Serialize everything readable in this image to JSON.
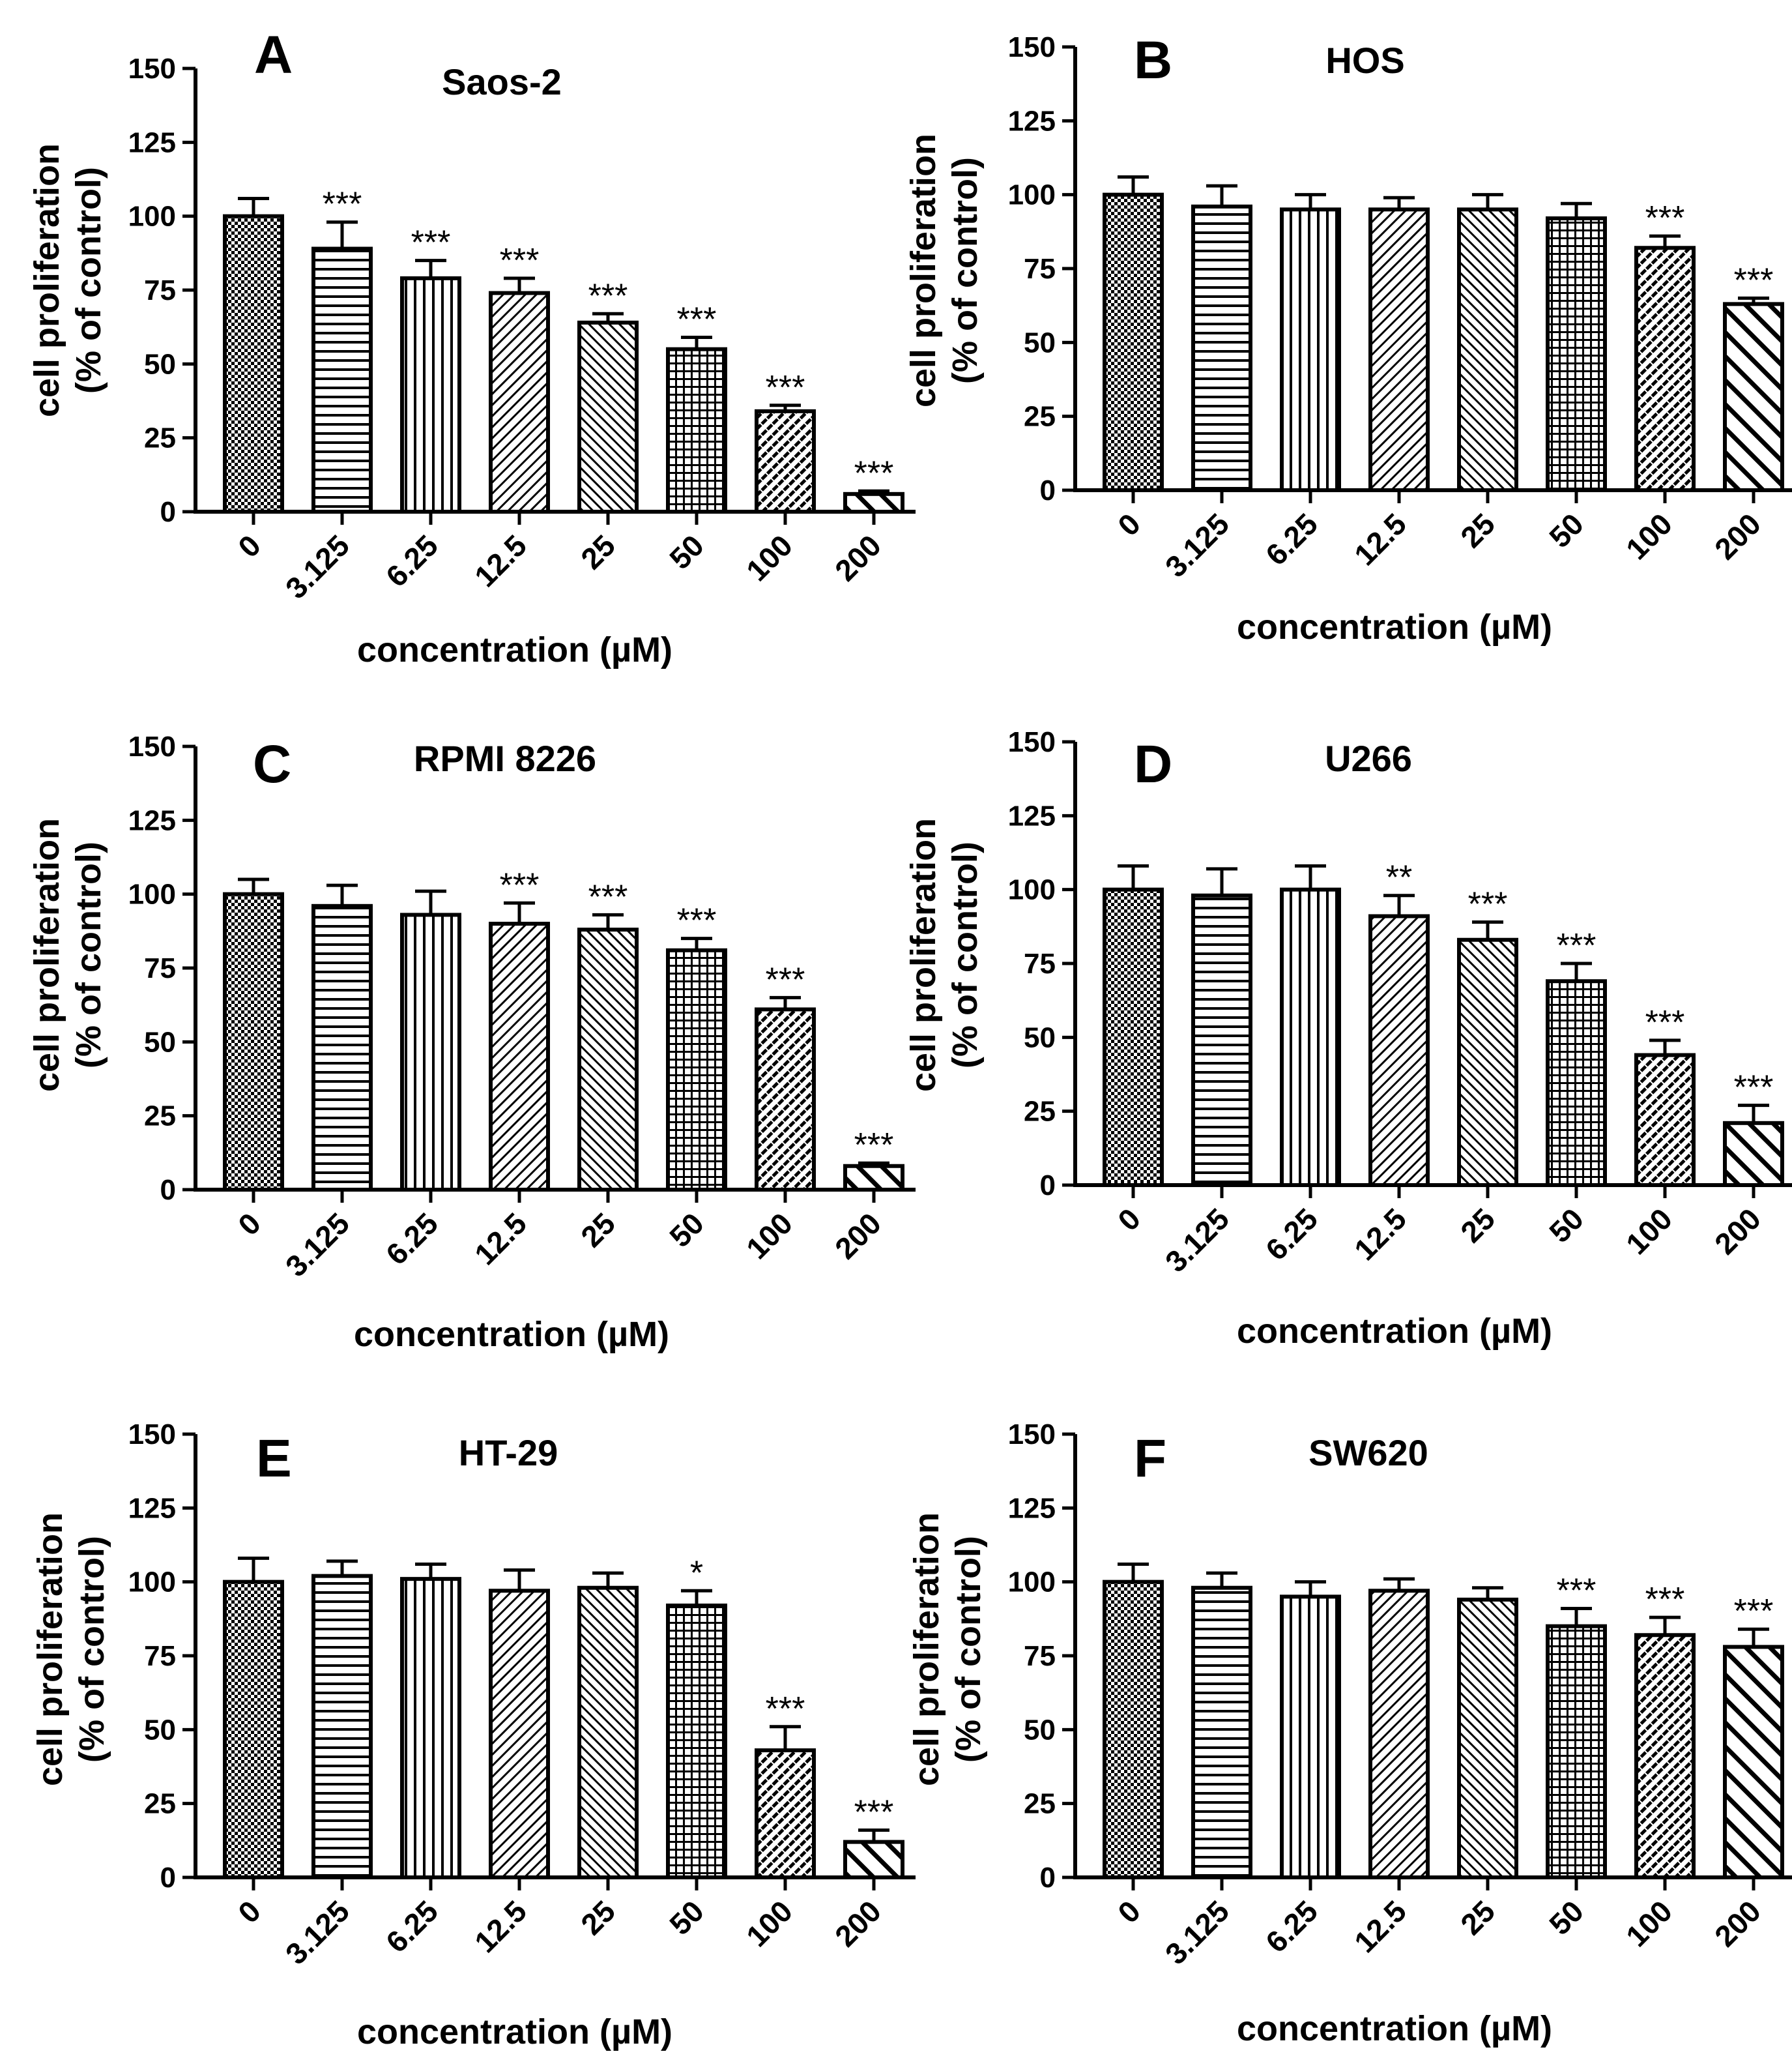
{
  "figure_name": "cell-proliferation-panels",
  "chart_data": [
    {
      "type": "bar",
      "letter": "A",
      "title": "Saos-2",
      "xlabel": "concentration (µM)",
      "ylabel_line1": "cell proliferation",
      "ylabel_line2": "(% of control)",
      "ylim": [
        0,
        150
      ],
      "yticks": [
        "0",
        "25",
        "50",
        "75",
        "100",
        "125",
        "150"
      ],
      "categories": [
        "0",
        "3.125",
        "6.25",
        "12.5",
        "25",
        "50",
        "100",
        "200"
      ],
      "values": [
        100,
        89,
        79,
        74,
        64,
        55,
        34,
        6
      ],
      "errors": [
        6,
        9,
        6,
        5,
        3,
        4,
        2,
        1
      ],
      "significance": [
        "",
        "***",
        "***",
        "***",
        "***",
        "***",
        "***",
        "***"
      ]
    },
    {
      "type": "bar",
      "letter": "B",
      "title": "HOS",
      "xlabel": "concentration (µM)",
      "ylabel_line1": "cell proliferation",
      "ylabel_line2": "(% of control)",
      "ylim": [
        0,
        150
      ],
      "yticks": [
        "0",
        "25",
        "50",
        "75",
        "100",
        "125",
        "150"
      ],
      "categories": [
        "0",
        "3.125",
        "6.25",
        "12.5",
        "25",
        "50",
        "100",
        "200"
      ],
      "values": [
        100,
        96,
        95,
        95,
        95,
        92,
        82,
        63
      ],
      "errors": [
        6,
        7,
        5,
        4,
        5,
        5,
        4,
        2
      ],
      "significance": [
        "",
        "",
        "",
        "",
        "",
        "",
        "***",
        "***"
      ]
    },
    {
      "type": "bar",
      "letter": "C",
      "title": "RPMI 8226",
      "xlabel": "concentration (µM)",
      "ylabel_line1": "cell proliferation",
      "ylabel_line2": "(% of control)",
      "ylim": [
        0,
        150
      ],
      "yticks": [
        "0",
        "25",
        "50",
        "75",
        "100",
        "125",
        "150"
      ],
      "categories": [
        "0",
        "3.125",
        "6.25",
        "12.5",
        "25",
        "50",
        "100",
        "200"
      ],
      "values": [
        100,
        96,
        93,
        90,
        88,
        81,
        61,
        8
      ],
      "errors": [
        5,
        7,
        8,
        7,
        5,
        4,
        4,
        1
      ],
      "significance": [
        "",
        "",
        "",
        "***",
        "***",
        "***",
        "***",
        "***"
      ]
    },
    {
      "type": "bar",
      "letter": "D",
      "title": "U266",
      "xlabel": "concentration (µM)",
      "ylabel_line1": "cell proliferation",
      "ylabel_line2": "(% of control)",
      "ylim": [
        0,
        150
      ],
      "yticks": [
        "0",
        "25",
        "50",
        "75",
        "100",
        "125",
        "150"
      ],
      "categories": [
        "0",
        "3.125",
        "6.25",
        "12.5",
        "25",
        "50",
        "100",
        "200"
      ],
      "values": [
        100,
        98,
        100,
        91,
        83,
        69,
        44,
        21
      ],
      "errors": [
        8,
        9,
        8,
        7,
        6,
        6,
        5,
        6
      ],
      "significance": [
        "",
        "",
        "",
        "**",
        "***",
        "***",
        "***",
        "***"
      ]
    },
    {
      "type": "bar",
      "letter": "E",
      "title": "HT-29",
      "xlabel": "concentration (µM)",
      "ylabel_line1": "cell proliferation",
      "ylabel_line2": "(% of control)",
      "ylim": [
        0,
        150
      ],
      "yticks": [
        "0",
        "25",
        "50",
        "75",
        "100",
        "125",
        "150"
      ],
      "categories": [
        "0",
        "3.125",
        "6.25",
        "12.5",
        "25",
        "50",
        "100",
        "200"
      ],
      "values": [
        100,
        102,
        101,
        97,
        98,
        92,
        43,
        12
      ],
      "errors": [
        8,
        5,
        5,
        7,
        5,
        5,
        8,
        4
      ],
      "significance": [
        "",
        "",
        "",
        "",
        "",
        "*",
        "***",
        "***"
      ]
    },
    {
      "type": "bar",
      "letter": "F",
      "title": "SW620",
      "xlabel": "concentration (µM)",
      "ylabel_line1": "cell proliferation",
      "ylabel_line2": "(% of control)",
      "ylim": [
        0,
        150
      ],
      "yticks": [
        "0",
        "25",
        "50",
        "75",
        "100",
        "125",
        "150"
      ],
      "categories": [
        "0",
        "3.125",
        "6.25",
        "12.5",
        "25",
        "50",
        "100",
        "200"
      ],
      "values": [
        100,
        98,
        95,
        97,
        94,
        85,
        82,
        78
      ],
      "errors": [
        6,
        5,
        5,
        4,
        4,
        6,
        6,
        6
      ],
      "significance": [
        "",
        "",
        "",
        "",
        "",
        "***",
        "***",
        "***"
      ]
    }
  ]
}
